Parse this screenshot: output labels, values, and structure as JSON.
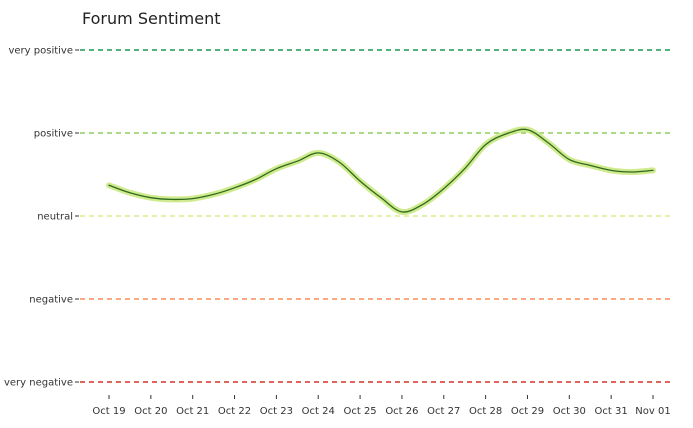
{
  "chart_data": {
    "type": "line",
    "title": "Forum Sentiment",
    "xlabel": "",
    "ylabel": "",
    "x_tick_labels": [
      "Oct 19",
      "Oct 20",
      "Oct 21",
      "Oct 22",
      "Oct 23",
      "Oct 24",
      "Oct 25",
      "Oct 26",
      "Oct 27",
      "Oct 28",
      "Oct 29",
      "Oct 30",
      "Oct 31",
      "Nov 01"
    ],
    "y_levels": [
      {
        "label": "very positive",
        "value": 2,
        "color": "#1a9850"
      },
      {
        "label": "positive",
        "value": 1,
        "color": "#91cf60"
      },
      {
        "label": "neutral",
        "value": 0,
        "color": "#d9ef8b"
      },
      {
        "label": "negative",
        "value": -1,
        "color": "#fc8d59"
      },
      {
        "label": "very negative",
        "value": -2,
        "color": "#d73027"
      }
    ],
    "ylim": [
      -2,
      2
    ],
    "grid": false,
    "series": [
      {
        "line_color": "#2d6a1e",
        "band_color": "#c8e67a",
        "points": [
          {
            "x": "Oct 19",
            "y": 0.37
          },
          {
            "x": "Oct 19.5",
            "y": 0.28
          },
          {
            "x": "Oct 20",
            "y": 0.22
          },
          {
            "x": "Oct 20.5",
            "y": 0.2
          },
          {
            "x": "Oct 21",
            "y": 0.21
          },
          {
            "x": "Oct 21.5",
            "y": 0.26
          },
          {
            "x": "Oct 22",
            "y": 0.34
          },
          {
            "x": "Oct 22.5",
            "y": 0.44
          },
          {
            "x": "Oct 23",
            "y": 0.57
          },
          {
            "x": "Oct 23.5",
            "y": 0.66
          },
          {
            "x": "Oct 24",
            "y": 0.76
          },
          {
            "x": "Oct 24.5",
            "y": 0.65
          },
          {
            "x": "Oct 25",
            "y": 0.42
          },
          {
            "x": "Oct 25.5",
            "y": 0.22
          },
          {
            "x": "Oct 26",
            "y": 0.05
          },
          {
            "x": "Oct 26.5",
            "y": 0.14
          },
          {
            "x": "Oct 27",
            "y": 0.33
          },
          {
            "x": "Oct 27.5",
            "y": 0.57
          },
          {
            "x": "Oct 28",
            "y": 0.86
          },
          {
            "x": "Oct 28.5",
            "y": 0.99
          },
          {
            "x": "Oct 29",
            "y": 1.04
          },
          {
            "x": "Oct 29.5",
            "y": 0.88
          },
          {
            "x": "Oct 30",
            "y": 0.68
          },
          {
            "x": "Oct 30.5",
            "y": 0.61
          },
          {
            "x": "Oct 31",
            "y": 0.55
          },
          {
            "x": "Oct 31.5",
            "y": 0.53
          },
          {
            "x": "Nov 01",
            "y": 0.55
          }
        ]
      }
    ]
  }
}
